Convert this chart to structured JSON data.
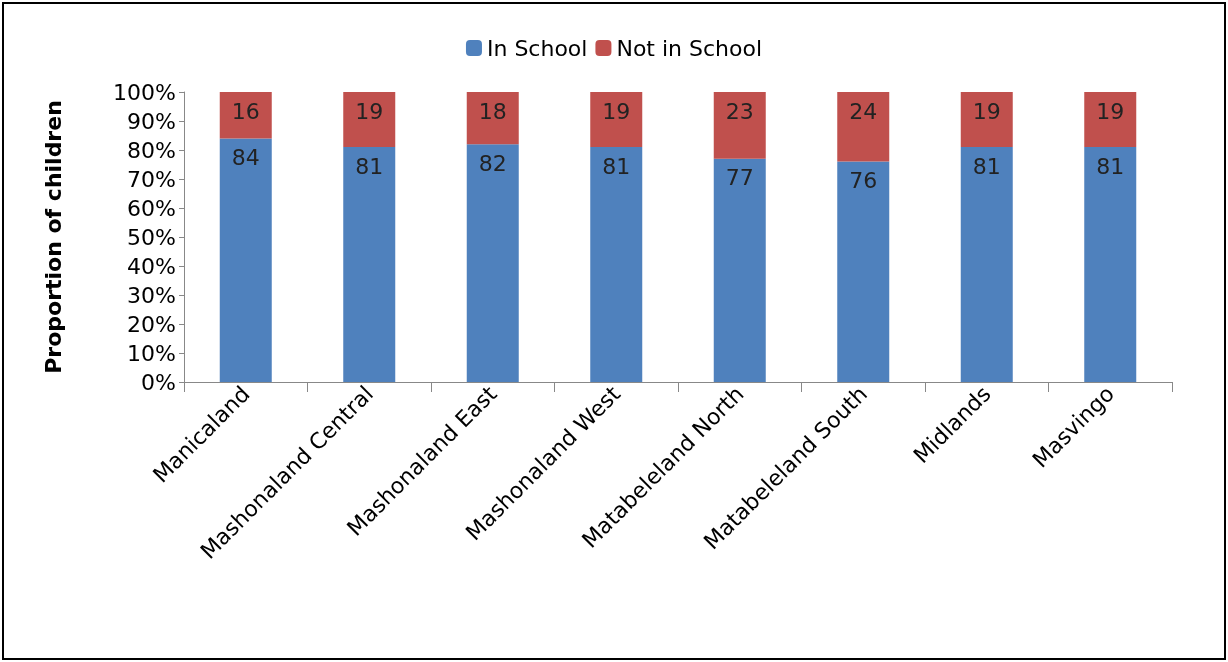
{
  "chart_data": {
    "type": "bar",
    "stacked": true,
    "ylabel": "Proportion of children",
    "categories": [
      "Manicaland",
      "Mashonaland Central",
      "Mashonaland East",
      "Mashonaland West",
      "Matabeleland North",
      "Matabeleland South",
      "Midlands",
      "Masvingo"
    ],
    "series": [
      {
        "name": "In School",
        "color": "#4f81bd",
        "values": [
          84,
          81,
          82,
          81,
          77,
          76,
          81,
          81
        ]
      },
      {
        "name": "Not in School",
        "color": "#c0504d",
        "values": [
          16,
          19,
          18,
          19,
          23,
          24,
          19,
          19
        ]
      }
    ],
    "ylim": [
      0,
      100
    ],
    "yticks": [
      {
        "value": 0,
        "label": "0%"
      },
      {
        "value": 10,
        "label": "10%"
      },
      {
        "value": 20,
        "label": "20%"
      },
      {
        "value": 30,
        "label": "30%"
      },
      {
        "value": 40,
        "label": "40%"
      },
      {
        "value": 50,
        "label": "50%"
      },
      {
        "value": 60,
        "label": "60%"
      },
      {
        "value": 70,
        "label": "70%"
      },
      {
        "value": 80,
        "label": "80%"
      },
      {
        "value": 90,
        "label": "90%"
      },
      {
        "value": 100,
        "label": "100%"
      }
    ],
    "data_labels": true,
    "legend": "top",
    "grid": false
  }
}
